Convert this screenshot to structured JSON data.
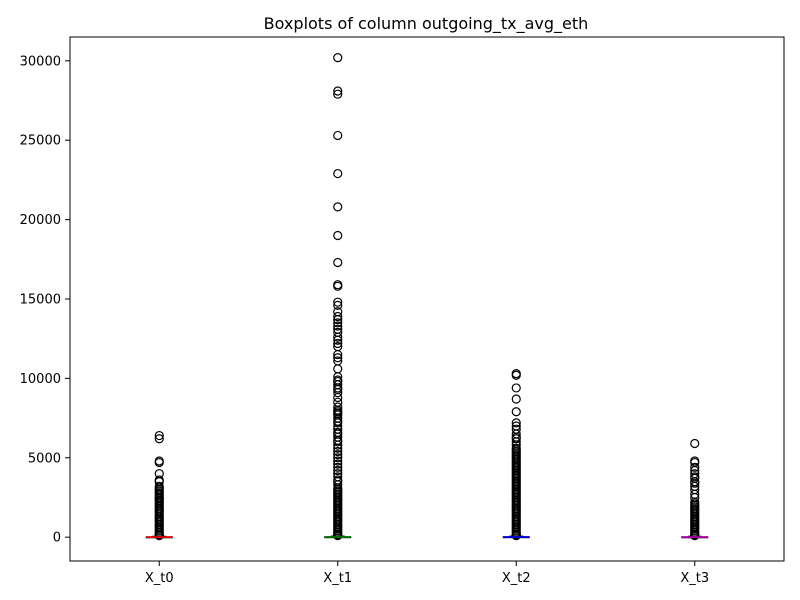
{
  "chart_data": {
    "type": "boxplot",
    "title": "Boxplots of column outgoing_tx_avg_eth",
    "xlabel": "",
    "ylabel": "",
    "categories": [
      "X_t0",
      "X_t1",
      "X_t2",
      "X_t3"
    ],
    "ylim": [
      -1500,
      31500
    ],
    "yticks": [
      0,
      5000,
      10000,
      15000,
      20000,
      25000,
      30000
    ],
    "grid": false,
    "series": [
      {
        "category": "X_t0",
        "color": "#ff0000",
        "q1": 0,
        "median": 5,
        "q3": 25,
        "whisker_low": 0,
        "whisker_high": 60,
        "outliers": [
          6400,
          6200,
          4800,
          4700,
          4000,
          3600,
          3500,
          3200,
          3100,
          3000,
          2900,
          2800,
          2700,
          2600,
          2500,
          2450,
          2400,
          2300,
          2200,
          2100,
          2000,
          1900,
          1800,
          1700,
          1600,
          1500,
          1400,
          1300,
          1200,
          1100,
          1000,
          900,
          800,
          700,
          600,
          500,
          400,
          300,
          200,
          150,
          100
        ]
      },
      {
        "category": "X_t1",
        "color": "#008000",
        "q1": 0,
        "median": 5,
        "q3": 30,
        "whisker_low": 0,
        "whisker_high": 70,
        "outliers": [
          30200,
          28100,
          27900,
          25300,
          22900,
          20800,
          19000,
          17300,
          15900,
          15800,
          14800,
          14600,
          14200,
          13900,
          13700,
          13500,
          13300,
          13100,
          12900,
          12600,
          12400,
          12200,
          12000,
          11500,
          11300,
          11100,
          10600,
          10100,
          9900,
          9800,
          9600,
          9400,
          9300,
          9100,
          8800,
          8500,
          8200,
          8000,
          7900,
          7800,
          7700,
          7500,
          7300,
          7200,
          7000,
          6800,
          6600,
          6500,
          6300,
          6100,
          6000,
          5800,
          5600,
          5400,
          5200,
          5000,
          4800,
          4600,
          4400,
          4200,
          4000,
          3800,
          3600,
          3500,
          3300,
          3100,
          3000,
          2900,
          2800,
          2700,
          2600,
          2500,
          2400,
          2300,
          2200,
          2100,
          2000,
          1900,
          1800,
          1700,
          1600,
          1500,
          1400,
          1300,
          1200,
          1100,
          1000,
          900,
          800,
          700,
          600,
          500,
          400,
          300,
          200,
          150,
          100
        ]
      },
      {
        "category": "X_t2",
        "color": "#0000ff",
        "q1": 0,
        "median": 5,
        "q3": 30,
        "whisker_low": 0,
        "whisker_high": 70,
        "outliers": [
          10300,
          10200,
          9400,
          8700,
          7900,
          7200,
          7000,
          6800,
          6500,
          6300,
          6200,
          6000,
          5800,
          5600,
          5500,
          5400,
          5300,
          5200,
          5100,
          5000,
          4900,
          4800,
          4700,
          4600,
          4500,
          4400,
          4300,
          4200,
          4100,
          4000,
          3900,
          3800,
          3700,
          3600,
          3500,
          3400,
          3300,
          3200,
          3100,
          3000,
          2900,
          2800,
          2700,
          2600,
          2500,
          2400,
          2300,
          2200,
          2100,
          2000,
          1900,
          1800,
          1700,
          1600,
          1500,
          1400,
          1300,
          1200,
          1100,
          1000,
          900,
          800,
          700,
          600,
          500,
          400,
          300,
          200,
          150,
          100
        ]
      },
      {
        "category": "X_t3",
        "color": "#bf00bf",
        "q1": 0,
        "median": 5,
        "q3": 25,
        "whisker_low": 0,
        "whisker_high": 60,
        "outliers": [
          5900,
          4800,
          4700,
          4400,
          4200,
          4000,
          3800,
          3700,
          3500,
          3400,
          3200,
          3000,
          2700,
          2500,
          2200,
          2100,
          2000,
          1900,
          1800,
          1700,
          1600,
          1500,
          1400,
          1300,
          1200,
          1100,
          1000,
          900,
          800,
          700,
          600,
          500,
          400,
          300,
          200,
          150,
          100
        ]
      }
    ]
  }
}
